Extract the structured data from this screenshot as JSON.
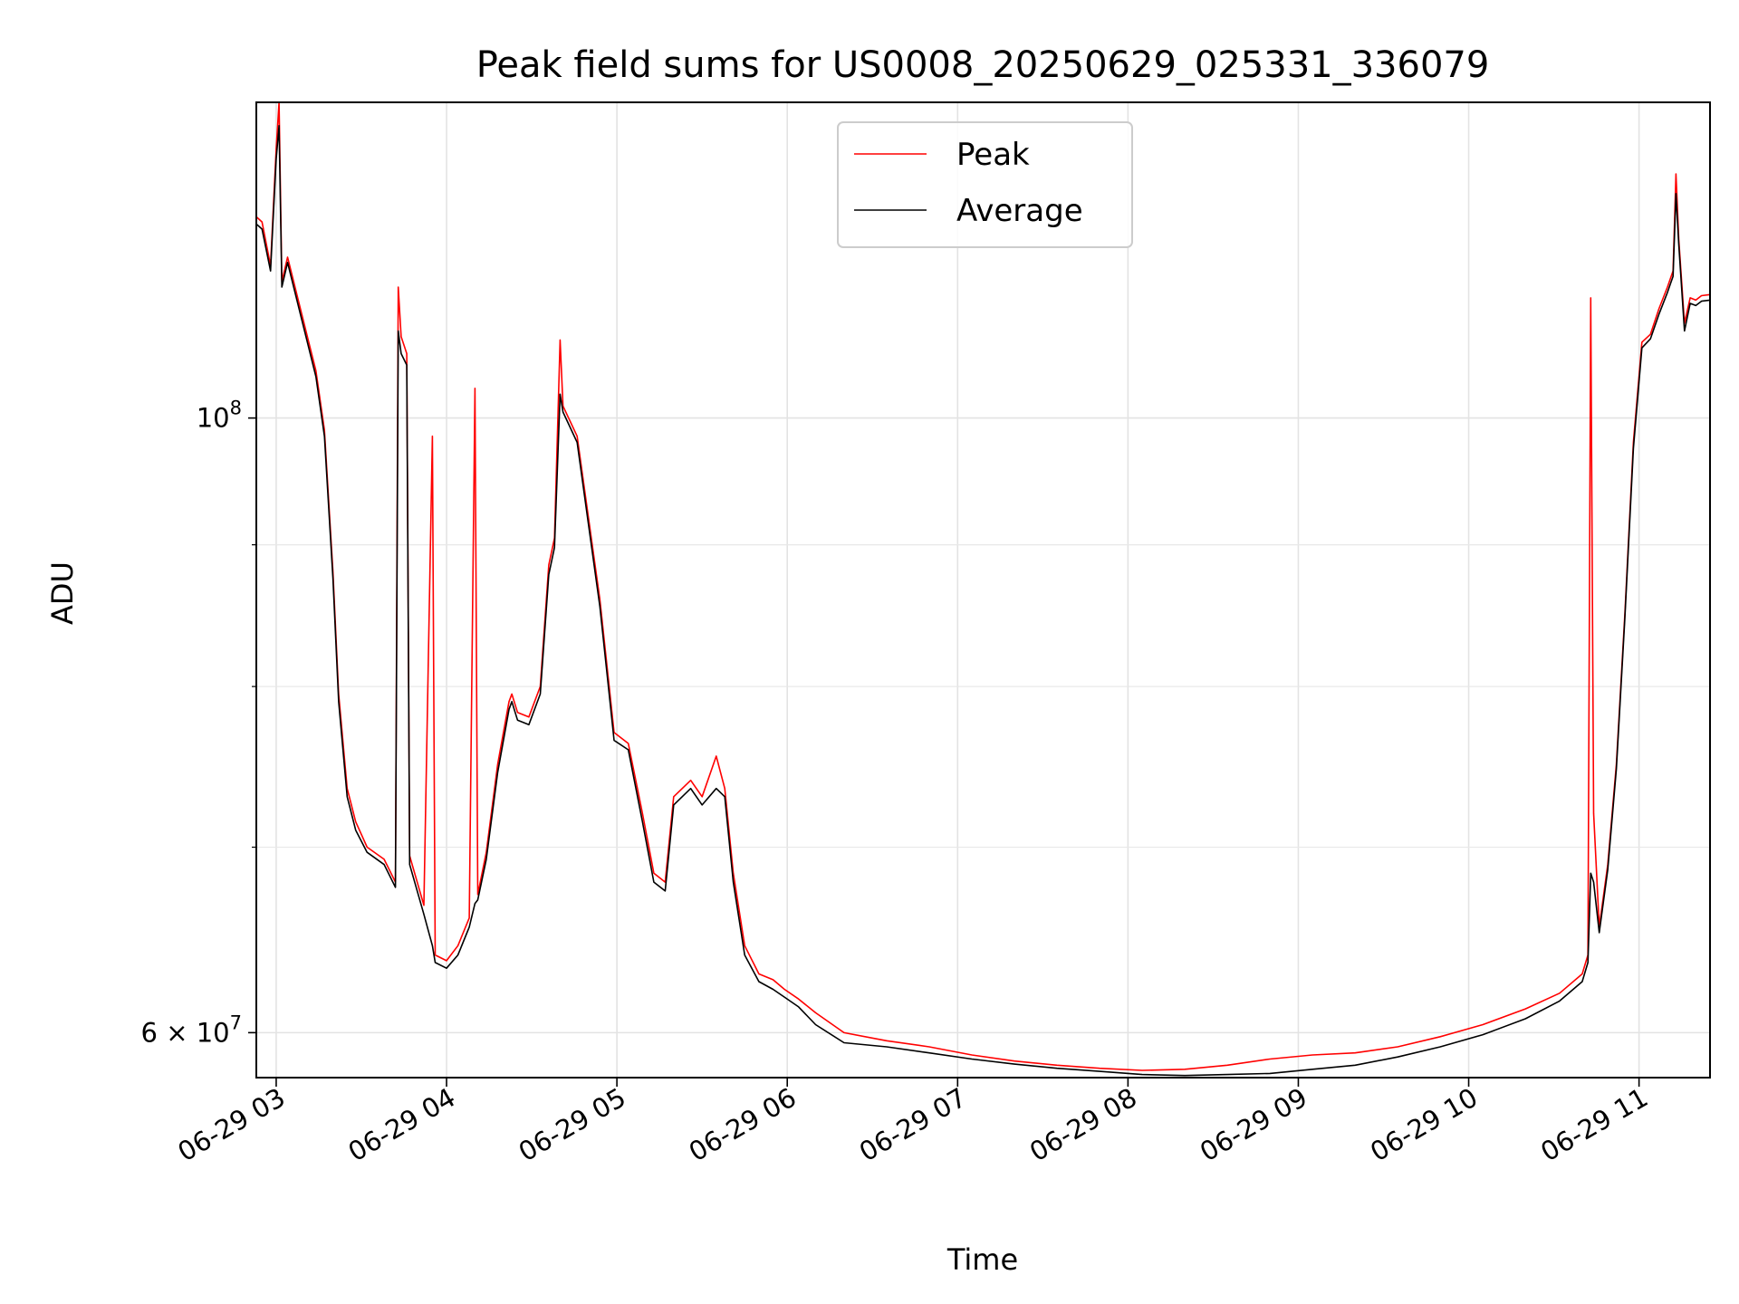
{
  "chart_data": {
    "type": "line",
    "title": "Peak field sums for US0008_20250629_025331_336079",
    "xlabel": "Time",
    "ylabel": "ADU",
    "yscale": "log",
    "grid": true,
    "legend_position": "top-center",
    "x_ticks": [
      "06-29 03",
      "06-29 04",
      "06-29 05",
      "06-29 06",
      "06-29 07",
      "06-29 08",
      "06-29 09",
      "06-29 10",
      "06-29 11"
    ],
    "y_tick_labels": [
      {
        "value": 100000000,
        "base": "10",
        "exponent": "8"
      },
      {
        "value": 60000000,
        "mantissa": "6",
        "times": "×",
        "base": "10",
        "exponent": "7"
      }
    ],
    "x_range": [
      "2025-06-29 02:53",
      "2025-06-29 11:25"
    ],
    "y_range": [
      57800000,
      130000000
    ],
    "series": [
      {
        "name": "Peak",
        "color": "#ff0000",
        "points": [
          [
            "2025-06-29 02:53",
            118200000
          ],
          [
            "2025-06-29 02:55",
            117700000
          ],
          [
            "2025-06-29 02:58",
            113500000
          ],
          [
            "2025-06-29 03:00",
            125000000
          ],
          [
            "2025-06-29 03:01",
            130000000
          ],
          [
            "2025-06-29 03:02",
            112000000
          ],
          [
            "2025-06-29 03:04",
            114300000
          ],
          [
            "2025-06-29 03:09",
            109000000
          ],
          [
            "2025-06-29 03:14",
            104000000
          ],
          [
            "2025-06-29 03:17",
            99000000
          ],
          [
            "2025-06-29 03:20",
            88000000
          ],
          [
            "2025-06-29 03:22",
            79500000
          ],
          [
            "2025-06-29 03:25",
            73500000
          ],
          [
            "2025-06-29 03:28",
            71500000
          ],
          [
            "2025-06-29 03:32",
            70000000
          ],
          [
            "2025-06-29 03:38",
            69300000
          ],
          [
            "2025-06-29 03:42",
            68000000
          ],
          [
            "2025-06-29 03:43",
            111500000
          ],
          [
            "2025-06-29 03:44",
            107000000
          ],
          [
            "2025-06-29 03:46",
            105500000
          ],
          [
            "2025-06-29 03:47",
            69500000
          ],
          [
            "2025-06-29 03:52",
            66700000
          ],
          [
            "2025-06-29 03:55",
            98500000
          ],
          [
            "2025-06-29 03:56",
            64000000
          ],
          [
            "2025-06-29 04:00",
            63700000
          ],
          [
            "2025-06-29 04:04",
            64500000
          ],
          [
            "2025-06-29 04:08",
            66000000
          ],
          [
            "2025-06-29 04:10",
            102500000
          ],
          [
            "2025-06-29 04:11",
            67300000
          ],
          [
            "2025-06-29 04:14",
            69700000
          ],
          [
            "2025-06-29 04:18",
            75000000
          ],
          [
            "2025-06-29 04:22",
            79000000
          ],
          [
            "2025-06-29 04:23",
            79500000
          ],
          [
            "2025-06-29 04:25",
            78300000
          ],
          [
            "2025-06-29 04:29",
            78000000
          ],
          [
            "2025-06-29 04:33",
            80000000
          ],
          [
            "2025-06-29 04:36",
            88500000
          ],
          [
            "2025-06-29 04:38",
            90500000
          ],
          [
            "2025-06-29 04:40",
            106700000
          ],
          [
            "2025-06-29 04:41",
            101000000
          ],
          [
            "2025-06-29 04:46",
            98500000
          ],
          [
            "2025-06-29 04:50",
            92000000
          ],
          [
            "2025-06-29 04:54",
            86000000
          ],
          [
            "2025-06-29 04:57",
            80500000
          ],
          [
            "2025-06-29 04:59",
            77000000
          ],
          [
            "2025-06-29 05:04",
            76300000
          ],
          [
            "2025-06-29 05:09",
            72000000
          ],
          [
            "2025-06-29 05:13",
            68500000
          ],
          [
            "2025-06-29 05:17",
            68000000
          ],
          [
            "2025-06-29 05:20",
            73000000
          ],
          [
            "2025-06-29 05:26",
            74000000
          ],
          [
            "2025-06-29 05:30",
            73000000
          ],
          [
            "2025-06-29 05:35",
            75500000
          ],
          [
            "2025-06-29 05:38",
            73500000
          ],
          [
            "2025-06-29 05:41",
            68500000
          ],
          [
            "2025-06-29 05:45",
            64500000
          ],
          [
            "2025-06-29 05:50",
            63000000
          ],
          [
            "2025-06-29 05:55",
            62700000
          ],
          [
            "2025-06-29 05:59",
            62200000
          ],
          [
            "2025-06-29 06:04",
            61700000
          ],
          [
            "2025-06-29 06:10",
            61000000
          ],
          [
            "2025-06-29 06:20",
            60000000
          ],
          [
            "2025-06-29 06:35",
            59600000
          ],
          [
            "2025-06-29 06:50",
            59300000
          ],
          [
            "2025-06-29 07:05",
            58900000
          ],
          [
            "2025-06-29 07:20",
            58600000
          ],
          [
            "2025-06-29 07:35",
            58400000
          ],
          [
            "2025-06-29 07:50",
            58250000
          ],
          [
            "2025-06-29 08:05",
            58150000
          ],
          [
            "2025-06-29 08:20",
            58200000
          ],
          [
            "2025-06-29 08:35",
            58400000
          ],
          [
            "2025-06-29 08:50",
            58700000
          ],
          [
            "2025-06-29 09:05",
            58900000
          ],
          [
            "2025-06-29 09:20",
            59000000
          ],
          [
            "2025-06-29 09:35",
            59300000
          ],
          [
            "2025-06-29 09:50",
            59800000
          ],
          [
            "2025-06-29 10:05",
            60400000
          ],
          [
            "2025-06-29 10:20",
            61200000
          ],
          [
            "2025-06-29 10:32",
            62000000
          ],
          [
            "2025-06-29 10:40",
            63000000
          ],
          [
            "2025-06-29 10:42",
            64000000
          ],
          [
            "2025-06-29 10:43",
            110500000
          ],
          [
            "2025-06-29 10:44",
            72000000
          ],
          [
            "2025-06-29 10:46",
            65500000
          ],
          [
            "2025-06-29 10:49",
            69000000
          ],
          [
            "2025-06-29 10:52",
            75000000
          ],
          [
            "2025-06-29 10:55",
            85000000
          ],
          [
            "2025-06-29 10:58",
            98000000
          ],
          [
            "2025-06-29 11:01",
            106500000
          ],
          [
            "2025-06-29 11:04",
            107200000
          ],
          [
            "2025-06-29 11:07",
            109500000
          ],
          [
            "2025-06-29 11:10",
            111500000
          ],
          [
            "2025-06-29 11:12",
            113000000
          ],
          [
            "2025-06-29 11:13",
            122500000
          ],
          [
            "2025-06-29 11:14",
            116000000
          ],
          [
            "2025-06-29 11:16",
            108200000
          ],
          [
            "2025-06-29 11:18",
            110500000
          ],
          [
            "2025-06-29 11:20",
            110300000
          ],
          [
            "2025-06-29 11:22",
            110700000
          ],
          [
            "2025-06-29 11:25",
            110800000
          ]
        ]
      },
      {
        "name": "Average",
        "color": "#000000",
        "points": [
          [
            "2025-06-29 02:53",
            117500000
          ],
          [
            "2025-06-29 02:55",
            117000000
          ],
          [
            "2025-06-29 02:58",
            113000000
          ],
          [
            "2025-06-29 03:00",
            124000000
          ],
          [
            "2025-06-29 03:01",
            127500000
          ],
          [
            "2025-06-29 03:02",
            111500000
          ],
          [
            "2025-06-29 03:04",
            113800000
          ],
          [
            "2025-06-29 03:09",
            108500000
          ],
          [
            "2025-06-29 03:14",
            103500000
          ],
          [
            "2025-06-29 03:17",
            98500000
          ],
          [
            "2025-06-29 03:20",
            87500000
          ],
          [
            "2025-06-29 03:22",
            79000000
          ],
          [
            "2025-06-29 03:25",
            73000000
          ],
          [
            "2025-06-29 03:28",
            71000000
          ],
          [
            "2025-06-29 03:32",
            69700000
          ],
          [
            "2025-06-29 03:38",
            69000000
          ],
          [
            "2025-06-29 03:42",
            67700000
          ],
          [
            "2025-06-29 03:43",
            107500000
          ],
          [
            "2025-06-29 03:44",
            105500000
          ],
          [
            "2025-06-29 03:46",
            104500000
          ],
          [
            "2025-06-29 03:47",
            69000000
          ],
          [
            "2025-06-29 03:52",
            66200000
          ],
          [
            "2025-06-29 03:55",
            64500000
          ],
          [
            "2025-06-29 03:56",
            63600000
          ],
          [
            "2025-06-29 04:00",
            63300000
          ],
          [
            "2025-06-29 04:04",
            64000000
          ],
          [
            "2025-06-29 04:08",
            65500000
          ],
          [
            "2025-06-29 04:10",
            66800000
          ],
          [
            "2025-06-29 04:11",
            67000000
          ],
          [
            "2025-06-29 04:14",
            69300000
          ],
          [
            "2025-06-29 04:18",
            74500000
          ],
          [
            "2025-06-29 04:22",
            78500000
          ],
          [
            "2025-06-29 04:23",
            79000000
          ],
          [
            "2025-06-29 04:25",
            77800000
          ],
          [
            "2025-06-29 04:29",
            77500000
          ],
          [
            "2025-06-29 04:33",
            79500000
          ],
          [
            "2025-06-29 04:36",
            87800000
          ],
          [
            "2025-06-29 04:38",
            89800000
          ],
          [
            "2025-06-29 04:40",
            102000000
          ],
          [
            "2025-06-29 04:41",
            100500000
          ],
          [
            "2025-06-29 04:46",
            98000000
          ],
          [
            "2025-06-29 04:50",
            91500000
          ],
          [
            "2025-06-29 04:54",
            85500000
          ],
          [
            "2025-06-29 04:57",
            80000000
          ],
          [
            "2025-06-29 04:59",
            76500000
          ],
          [
            "2025-06-29 05:04",
            75900000
          ],
          [
            "2025-06-29 05:09",
            71500000
          ],
          [
            "2025-06-29 05:13",
            68000000
          ],
          [
            "2025-06-29 05:17",
            67500000
          ],
          [
            "2025-06-29 05:20",
            72500000
          ],
          [
            "2025-06-29 05:26",
            73500000
          ],
          [
            "2025-06-29 05:30",
            72500000
          ],
          [
            "2025-06-29 05:35",
            73500000
          ],
          [
            "2025-06-29 05:38",
            73000000
          ],
          [
            "2025-06-29 05:41",
            68000000
          ],
          [
            "2025-06-29 05:45",
            64000000
          ],
          [
            "2025-06-29 05:50",
            62600000
          ],
          [
            "2025-06-29 05:55",
            62200000
          ],
          [
            "2025-06-29 05:59",
            61800000
          ],
          [
            "2025-06-29 06:04",
            61300000
          ],
          [
            "2025-06-29 06:10",
            60400000
          ],
          [
            "2025-06-29 06:20",
            59500000
          ],
          [
            "2025-06-29 06:35",
            59300000
          ],
          [
            "2025-06-29 06:50",
            59000000
          ],
          [
            "2025-06-29 07:05",
            58700000
          ],
          [
            "2025-06-29 07:20",
            58450000
          ],
          [
            "2025-06-29 07:35",
            58250000
          ],
          [
            "2025-06-29 07:50",
            58100000
          ],
          [
            "2025-06-29 08:05",
            57950000
          ],
          [
            "2025-06-29 08:20",
            57900000
          ],
          [
            "2025-06-29 08:35",
            57950000
          ],
          [
            "2025-06-29 08:50",
            58000000
          ],
          [
            "2025-06-29 09:05",
            58200000
          ],
          [
            "2025-06-29 09:20",
            58400000
          ],
          [
            "2025-06-29 09:35",
            58800000
          ],
          [
            "2025-06-29 09:50",
            59300000
          ],
          [
            "2025-06-29 10:05",
            59900000
          ],
          [
            "2025-06-29 10:20",
            60700000
          ],
          [
            "2025-06-29 10:32",
            61600000
          ],
          [
            "2025-06-29 10:40",
            62600000
          ],
          [
            "2025-06-29 10:42",
            63600000
          ],
          [
            "2025-06-29 10:43",
            68500000
          ],
          [
            "2025-06-29 10:44",
            68000000
          ],
          [
            "2025-06-29 10:46",
            65200000
          ],
          [
            "2025-06-29 10:49",
            68700000
          ],
          [
            "2025-06-29 10:52",
            74700000
          ],
          [
            "2025-06-29 10:55",
            84700000
          ],
          [
            "2025-06-29 10:58",
            97500000
          ],
          [
            "2025-06-29 11:01",
            106000000
          ],
          [
            "2025-06-29 11:04",
            106800000
          ],
          [
            "2025-06-29 11:07",
            109000000
          ],
          [
            "2025-06-29 11:10",
            111000000
          ],
          [
            "2025-06-29 11:12",
            112500000
          ],
          [
            "2025-06-29 11:13",
            120500000
          ],
          [
            "2025-06-29 11:14",
            115500000
          ],
          [
            "2025-06-29 11:16",
            107500000
          ],
          [
            "2025-06-29 11:18",
            110000000
          ],
          [
            "2025-06-29 11:20",
            109800000
          ],
          [
            "2025-06-29 11:22",
            110200000
          ],
          [
            "2025-06-29 11:25",
            110300000
          ]
        ]
      }
    ]
  }
}
